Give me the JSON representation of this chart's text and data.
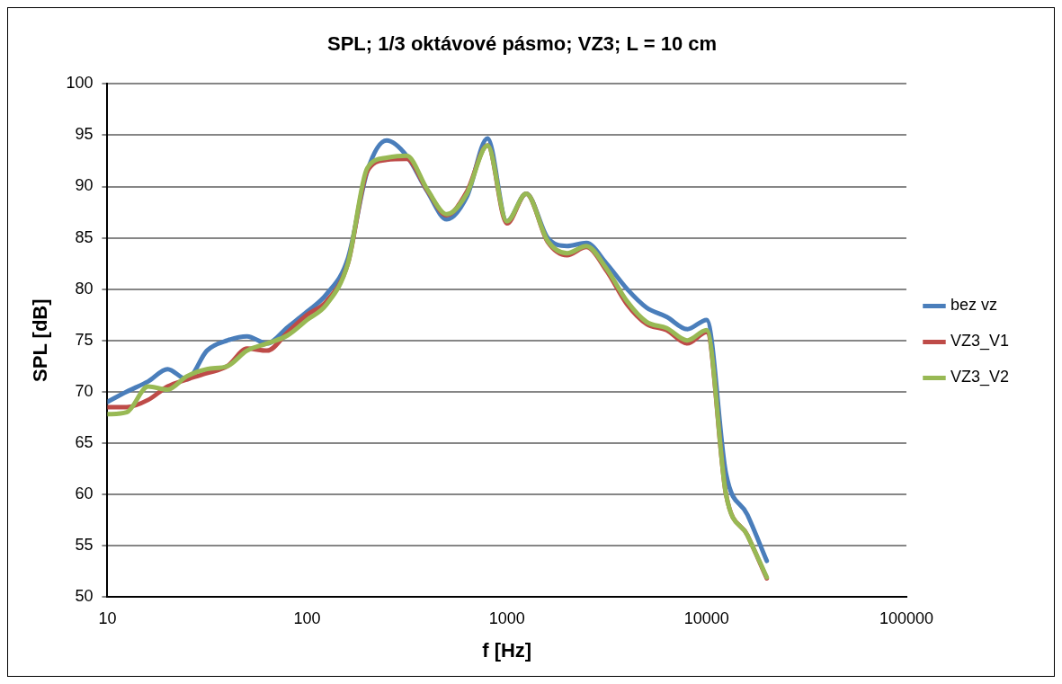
{
  "chart_data": {
    "type": "line",
    "title": "SPL; 1/3 oktávové pásmo; VZ3; L = 10 cm",
    "xlabel": "f [Hz]",
    "ylabel": "SPL [dB]",
    "x": [
      10,
      12.5,
      16,
      20,
      25,
      31.5,
      40,
      50,
      63,
      80,
      100,
      125,
      160,
      200,
      250,
      315,
      400,
      500,
      630,
      800,
      1000,
      1250,
      1600,
      2000,
      2500,
      3150,
      4000,
      5000,
      6300,
      8000,
      10000,
      12500,
      16000,
      20000
    ],
    "series": [
      {
        "name": "bez vz",
        "color": "#4a7ebb",
        "values": [
          69.0,
          70.0,
          71.0,
          72.2,
          71.2,
          74.0,
          75.0,
          75.4,
          74.7,
          76.3,
          77.8,
          79.5,
          83.0,
          91.5,
          94.5,
          93.0,
          89.5,
          86.8,
          89.0,
          94.7,
          86.6,
          89.3,
          85.0,
          84.2,
          84.5,
          82.5,
          80.0,
          78.2,
          77.3,
          76.1,
          77.0,
          62.0,
          58.0,
          53.5
        ]
      },
      {
        "name": "VZ3_V1",
        "color": "#be4b48",
        "values": [
          68.5,
          68.5,
          69.2,
          70.5,
          71.2,
          71.8,
          72.5,
          74.2,
          74.0,
          75.8,
          77.5,
          78.8,
          82.5,
          91.5,
          92.6,
          92.7,
          89.6,
          87.2,
          89.5,
          94.0,
          86.4,
          89.3,
          84.6,
          83.3,
          84.1,
          81.8,
          78.5,
          76.6,
          76.0,
          74.7,
          75.8,
          60.0,
          56.0,
          51.8
        ]
      },
      {
        "name": "VZ3_V2",
        "color": "#98b954",
        "values": [
          67.8,
          68.0,
          70.5,
          70.2,
          71.5,
          72.2,
          72.5,
          74.0,
          74.7,
          75.5,
          77.0,
          78.5,
          82.5,
          91.8,
          92.8,
          93.0,
          89.7,
          87.3,
          89.3,
          94.0,
          86.6,
          89.3,
          84.7,
          83.5,
          84.2,
          82.0,
          78.8,
          76.8,
          76.2,
          75.0,
          76.0,
          60.0,
          56.0,
          51.9
        ]
      }
    ],
    "log": "x",
    "xlim": [
      10,
      100000
    ],
    "xticks": [
      10,
      100,
      1000,
      10000,
      100000
    ],
    "ylim": [
      50,
      100
    ],
    "yticks": [
      50,
      55,
      60,
      65,
      70,
      75,
      80,
      85,
      90,
      95,
      100
    ],
    "grid": "y",
    "legend": "right",
    "marker": "none",
    "line_style": "solid"
  }
}
